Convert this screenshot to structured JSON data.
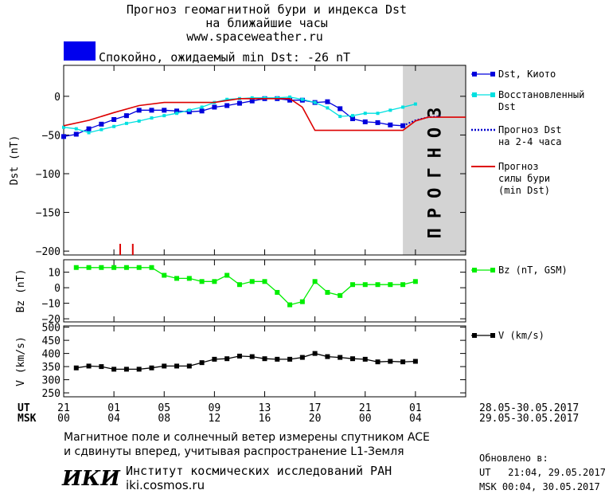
{
  "header": {
    "title_line1": "Прогноз геомагнитной бури и индекса Dst",
    "title_line2": "на ближайшие часы",
    "site": "www.spaceweather.ru",
    "status_color": "#0000ee",
    "status_text": "Спокойно, ожидаемый min Dst: -26 nT"
  },
  "chart_data": [
    {
      "type": "line",
      "panel": "dst",
      "ylabel": "Dst (nT)",
      "ylim": [
        -205,
        40
      ],
      "yticks": [
        0,
        -50,
        -100,
        -150,
        -200
      ],
      "xlim": [
        0,
        32
      ],
      "forecast_region": [
        27,
        32
      ],
      "forecast_label": "ПРОГНОЗ",
      "series": [
        {
          "name": "Dst, Киото",
          "color": "#0000dd",
          "x": [
            0,
            1,
            2,
            3,
            4,
            5,
            6,
            7,
            8,
            9,
            10,
            11,
            12,
            13,
            14,
            15,
            16,
            17,
            18,
            19,
            20,
            21,
            22,
            23,
            24,
            25,
            26,
            27
          ],
          "y": [
            -52,
            -49,
            -42,
            -36,
            -30,
            -25,
            -18,
            -18,
            -18,
            -19,
            -20,
            -19,
            -14,
            -12,
            -9,
            -6,
            -3,
            -3,
            -5,
            -5,
            -8,
            -7,
            -16,
            -29,
            -33,
            -34,
            -37,
            -38
          ]
        },
        {
          "name": "Восстановленный Dst",
          "color": "#00e0e0",
          "x": [
            0,
            1,
            2,
            3,
            4,
            5,
            6,
            7,
            8,
            9,
            10,
            11,
            12,
            13,
            14,
            15,
            16,
            17,
            18,
            19,
            20,
            21,
            22,
            23,
            24,
            25,
            26,
            27,
            28
          ],
          "y": [
            -40,
            -42,
            -47,
            -43,
            -39,
            -35,
            -32,
            -28,
            -25,
            -22,
            -18,
            -14,
            -8,
            -4,
            -3,
            -2,
            -2,
            -2,
            -1,
            -4,
            -8,
            -15,
            -26,
            -25,
            -22,
            -22,
            -18,
            -14,
            -10
          ]
        },
        {
          "name": "Прогноз Dst на 2-4 часа",
          "color": "#0000cc",
          "dashed": true,
          "x": [
            27,
            28,
            29,
            30
          ],
          "y": [
            -38,
            -31,
            -27,
            -26
          ]
        },
        {
          "name": "Прогноз силы бури (min Dst)",
          "color": "#dd0000",
          "x": [
            0,
            2,
            4,
            6,
            8,
            10,
            12,
            14,
            15,
            16,
            17,
            18,
            19,
            20,
            21,
            22,
            23,
            24,
            25,
            26,
            27,
            28,
            29,
            30,
            31,
            32
          ],
          "y": [
            -38,
            -31,
            -21,
            -12,
            -8,
            -8,
            -8,
            -3,
            -3,
            -3,
            -3,
            -3,
            -14,
            -44,
            -44,
            -44,
            -44,
            -44,
            -44,
            -44,
            -44,
            -32,
            -27,
            -27,
            -27,
            -27
          ]
        }
      ],
      "storm_markers_x": [
        4.5,
        5.5
      ],
      "storm_marker_color": "#dd0000"
    },
    {
      "type": "line",
      "panel": "bz",
      "ylabel": "Bz (nT)",
      "ylim": [
        -22,
        18
      ],
      "yticks": [
        10,
        0,
        -10,
        -20
      ],
      "xlim": [
        0,
        32
      ],
      "series": [
        {
          "name": "Bz (nT, GSM)",
          "color": "#00ee00",
          "x": [
            1,
            2,
            3,
            4,
            5,
            6,
            7,
            8,
            9,
            10,
            11,
            12,
            13,
            14,
            15,
            16,
            17,
            18,
            19,
            20,
            21,
            22,
            23,
            24,
            25,
            26,
            27,
            28
          ],
          "y": [
            13,
            13,
            13,
            13,
            13,
            13,
            13,
            8,
            6,
            6,
            4,
            4,
            8,
            2,
            4,
            4,
            -3,
            -11,
            -9,
            4,
            -3,
            -5,
            2,
            2,
            2,
            2,
            2,
            4
          ]
        }
      ]
    },
    {
      "type": "line",
      "panel": "v",
      "ylabel": "V (km/s)",
      "ylim": [
        235,
        505
      ],
      "yticks": [
        500,
        450,
        400,
        350,
        300,
        250
      ],
      "xlim": [
        0,
        32
      ],
      "series": [
        {
          "name": "V (km/s)",
          "color": "#000000",
          "x": [
            1,
            2,
            3,
            4,
            5,
            6,
            7,
            8,
            9,
            10,
            11,
            12,
            13,
            14,
            15,
            16,
            17,
            18,
            19,
            20,
            21,
            22,
            23,
            24,
            25,
            26,
            27,
            28
          ],
          "y": [
            345,
            352,
            350,
            340,
            340,
            340,
            345,
            352,
            352,
            352,
            365,
            378,
            380,
            390,
            388,
            380,
            378,
            378,
            385,
            400,
            388,
            385,
            380,
            378,
            368,
            370,
            368,
            370
          ]
        }
      ]
    }
  ],
  "time_axis": {
    "tick_x": [
      0,
      4,
      8,
      12,
      16,
      20,
      24,
      28,
      32
    ],
    "ut_label": "UT",
    "msk_label": "MSK",
    "ut_ticks": [
      "21",
      "01",
      "05",
      "09",
      "13",
      "17",
      "21",
      "01"
    ],
    "msk_ticks": [
      "00",
      "04",
      "08",
      "12",
      "16",
      "20",
      "00",
      "04"
    ],
    "ut_dates": "28.05-30.05.2017",
    "msk_dates": "29.05-30.05.2017"
  },
  "footer": {
    "line1": "Магнитное поле и солнечный ветер измерены спутником ACE",
    "line2": "и сдвинуты вперед, учитывая распространение L1-Земля",
    "logo": "ИКИ",
    "institute": "Институт космических исследований РАН",
    "institute_url": "iki.cosmos.ru",
    "updated_label": "Обновлено в:",
    "updated_ut": "UT   21:04, 29.05.2017",
    "updated_msk": "MSK 00:04, 30.05.2017"
  }
}
